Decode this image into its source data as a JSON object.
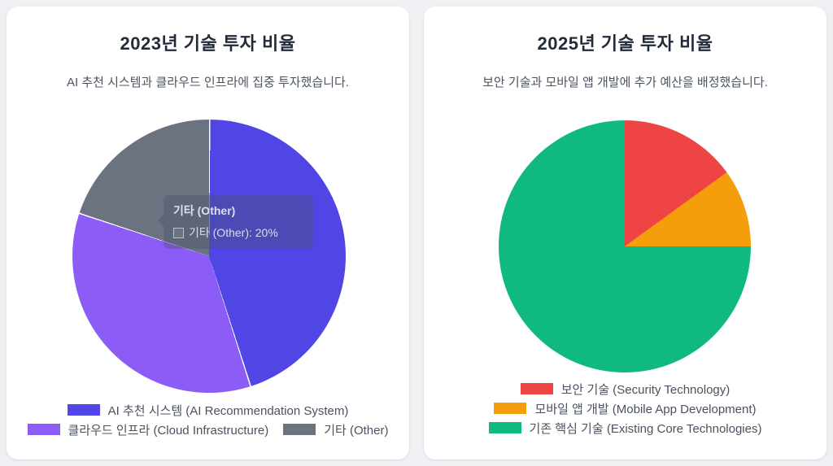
{
  "page": {
    "background_color": "#eef0f3",
    "card_background_color": "#ffffff"
  },
  "chart_data": [
    {
      "type": "pie",
      "title": "2023년 기술 투자 비율",
      "subtitle": "AI 추천 시스템과 클라우드 인프라에 집중 투자했습니다.",
      "labels": [
        "AI 추천 시스템 (AI Recommendation System)",
        "클라우드 인프라 (Cloud Infrastructure)",
        "기타 (Other)"
      ],
      "values": [
        45,
        35,
        20
      ],
      "unit": "%",
      "colors": [
        "#4F46E5",
        "#8B5CF6",
        "#6B7280"
      ],
      "start_angle_deg": 0,
      "direction": "clockwise",
      "legend_position": "bottom",
      "legend_rows": [
        [
          0
        ],
        [
          1,
          2
        ]
      ],
      "slice_border": true,
      "tooltip": {
        "visible": true,
        "title": "기타 (Other)",
        "text": "기타 (Other): 20%",
        "swatch_color": "#6B7280"
      }
    },
    {
      "type": "pie",
      "title": "2025년 기술 투자 비율",
      "subtitle": "보안 기술과 모바일 앱 개발에 추가 예산을 배정했습니다.",
      "labels": [
        "보안 기술 (Security Technology)",
        "모바일 앱 개발 (Mobile App Development)",
        "기존 핵심 기술 (Existing Core Technologies)"
      ],
      "values": [
        15,
        10,
        75
      ],
      "unit": "%",
      "colors": [
        "#EF4444",
        "#F59E0B",
        "#10B981"
      ],
      "start_angle_deg": 0,
      "direction": "clockwise",
      "legend_position": "bottom",
      "legend_rows": [
        [
          0
        ],
        [
          1
        ],
        [
          2
        ]
      ],
      "slice_border": false,
      "tooltip": {
        "visible": false
      }
    }
  ]
}
